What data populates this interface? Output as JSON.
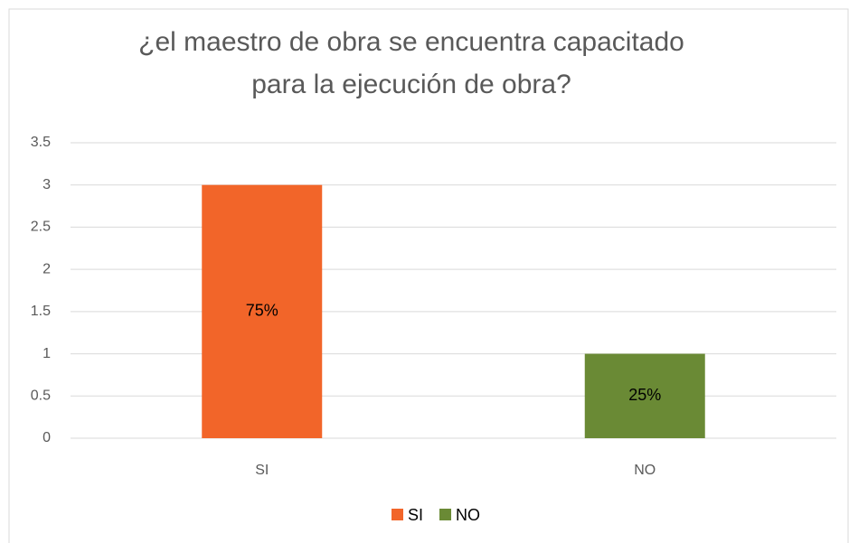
{
  "chart_data": {
    "type": "bar",
    "title": [
      "¿el maestro de obra se encuentra capacitado",
      "para la ejecución de obra?"
    ],
    "categories": [
      "SI",
      "NO"
    ],
    "values": [
      3,
      1
    ],
    "colors": [
      "#f26529",
      "#6a8a35"
    ],
    "annotations": [
      "75%",
      "25%"
    ],
    "ylim": [
      0,
      3.5
    ],
    "yticks": [
      0,
      0.5,
      1,
      1.5,
      2,
      2.5,
      3,
      3.5
    ],
    "grid": true,
    "legend": "bottom"
  }
}
